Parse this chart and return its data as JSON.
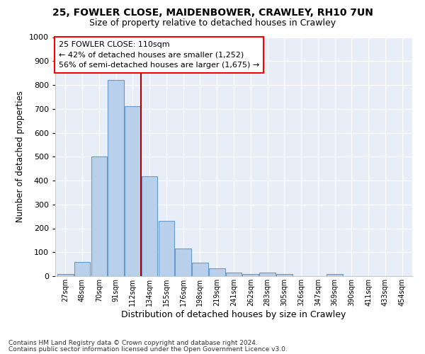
{
  "title_line1": "25, FOWLER CLOSE, MAIDENBOWER, CRAWLEY, RH10 7UN",
  "title_line2": "Size of property relative to detached houses in Crawley",
  "xlabel": "Distribution of detached houses by size in Crawley",
  "ylabel": "Number of detached properties",
  "bin_labels": [
    "27sqm",
    "48sqm",
    "70sqm",
    "91sqm",
    "112sqm",
    "134sqm",
    "155sqm",
    "176sqm",
    "198sqm",
    "219sqm",
    "241sqm",
    "262sqm",
    "283sqm",
    "305sqm",
    "326sqm",
    "347sqm",
    "369sqm",
    "390sqm",
    "411sqm",
    "433sqm",
    "454sqm"
  ],
  "bar_values": [
    8,
    58,
    500,
    820,
    710,
    418,
    230,
    116,
    55,
    32,
    15,
    10,
    14,
    8,
    0,
    0,
    10,
    0,
    0,
    0,
    0
  ],
  "bar_color": "#b8d0ea",
  "bar_edge_color": "#6699cc",
  "vline_x": 4.47,
  "vline_color": "#aa0000",
  "annotation_text": "25 FOWLER CLOSE: 110sqm\n← 42% of detached houses are smaller (1,252)\n56% of semi-detached houses are larger (1,675) →",
  "ylim": [
    0,
    1000
  ],
  "yticks": [
    0,
    100,
    200,
    300,
    400,
    500,
    600,
    700,
    800,
    900,
    1000
  ],
  "footnote1": "Contains HM Land Registry data © Crown copyright and database right 2024.",
  "footnote2": "Contains public sector information licensed under the Open Government Licence v3.0.",
  "bg_color": "#e8eef8",
  "grid_color": "#ffffff"
}
